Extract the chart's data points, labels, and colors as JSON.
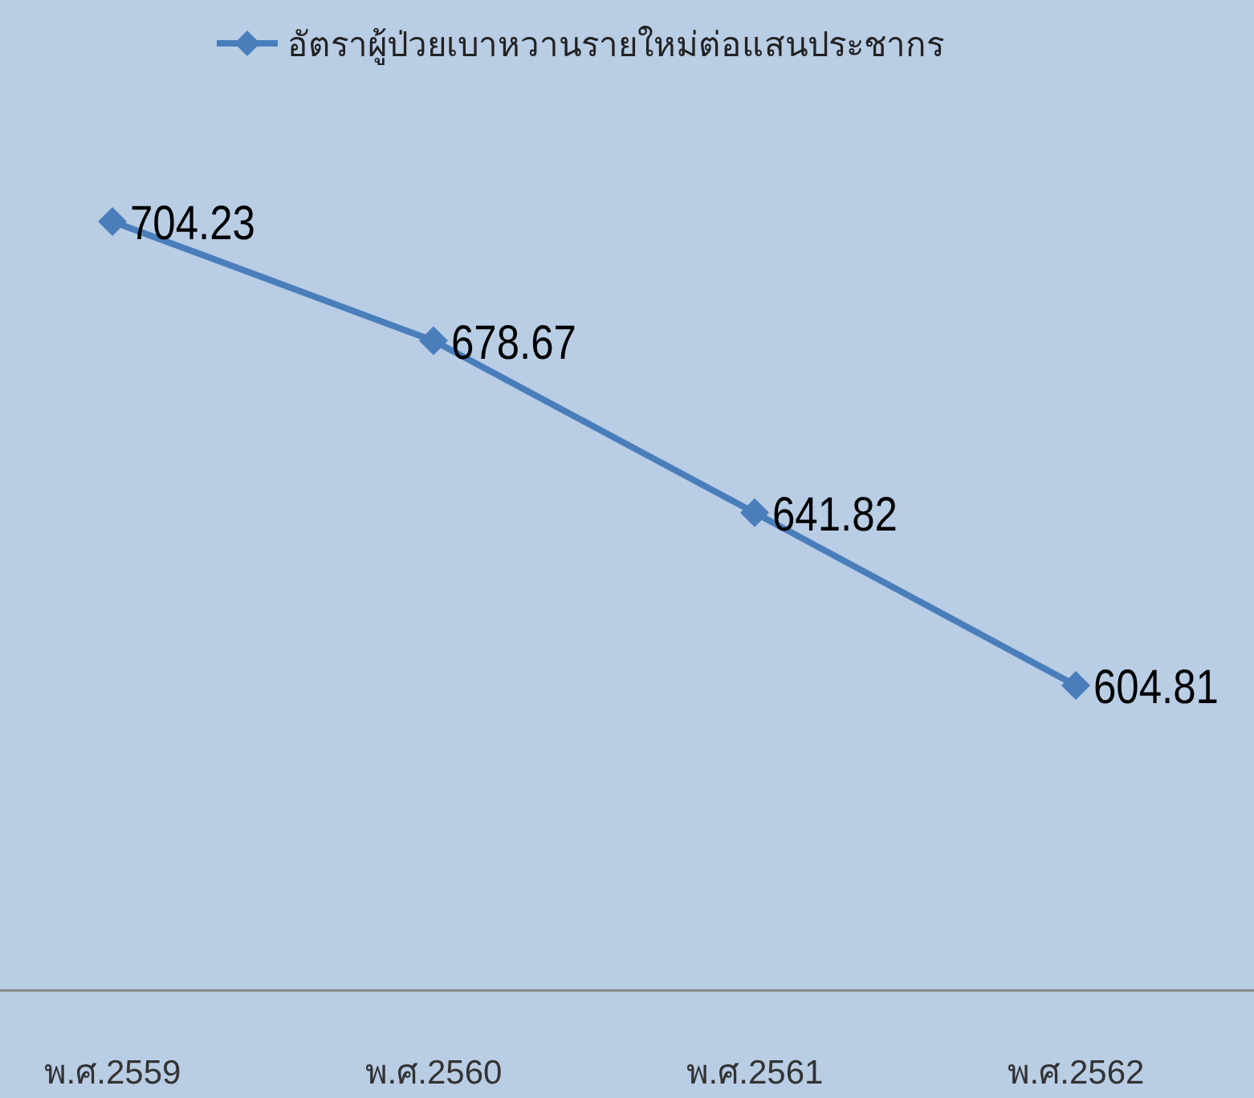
{
  "chart_data": {
    "type": "line",
    "categories": [
      "พ.ศ.2559",
      "พ.ศ.2560",
      "พ.ศ.2561",
      "พ.ศ.2562"
    ],
    "series": [
      {
        "name": "อัตราผู้ป่วยเบาหวานรายใหม่ต่อแสนประชากร",
        "color": "#4a7ebb",
        "values": [
          704.23,
          678.67,
          641.82,
          604.81
        ]
      }
    ],
    "data_labels": true,
    "legend": "top",
    "marker": "diamond"
  }
}
